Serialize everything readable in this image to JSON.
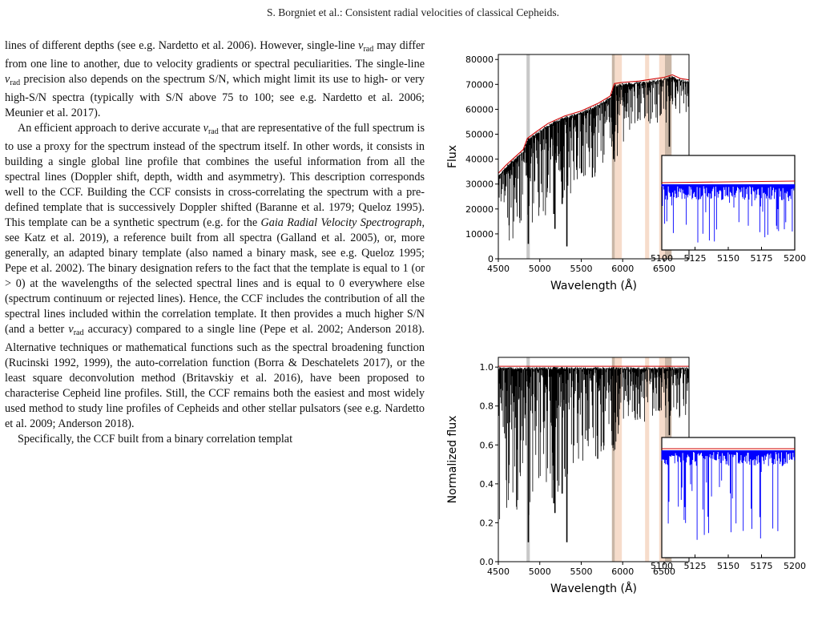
{
  "header": "S. Borgniet et al.: Consistent radial velocities of classical Cepheids.",
  "paragraphs": [
    [
      {
        "t": "lines of different depths (see e.g. Nardetto et al. 2006). However, single-line "
      },
      {
        "v": "v",
        "s": "rad"
      },
      {
        "t": " may differ from one line to another, due to veloc­ity gradients or spectral peculiarities. The single-line "
      },
      {
        "v": "v",
        "s": "rad"
      },
      {
        "t": " preci­sion also depends on the spectrum S/N, which might limit its use to high- or very high-S/N spectra (typically with S/N above 75 to 100; see e.g. Nardetto et al. 2006; Meunier et al. 2017)."
      }
    ],
    [
      {
        "t": "An efficient approach to derive accurate "
      },
      {
        "v": "v",
        "s": "rad"
      },
      {
        "t": " that are repre­sentative of the full spectrum is to use a proxy for the spectrum instead of the spectrum itself. In other words, it consists in build­ing a single global line profile that combines the useful infor­mation from all the spectral lines (Doppler shift, depth, width and asymmetry). This description corresponds well to the CCF. Building the CCF consists in cross-correlating the spectrum with a pre-defined template that is successively Doppler shifted (Baranne et al. 1979; Queloz 1995). This template can be a syn­thetic spectrum (e.g. for the "
      },
      {
        "i": "Gaia Radial Velocity Spectrograph"
      },
      {
        "t": ", see Katz et al. 2019), a reference built from all spectra (Galland et al. 2005), or, more generally, an adapted binary template (also named a binary mask, see e.g. Queloz 1995; Pepe et al. 2002). The binary designation refers to the fact that the template is equal to 1 (or > 0) at the wavelengths of the selected spectral lines and is equal to 0 everywhere else (spectrum continuum or rejected lines). Hence, the CCF includes the contribution of all the spec­tral lines included within the correlation template. It then pro­vides a much higher S/N (and a better "
      },
      {
        "v": "v",
        "s": "rad"
      },
      {
        "t": " accuracy) compared to a single line (Pepe et al. 2002; Anderson 2018). Alternative techniques or mathematical functions such as the spectral broad­ening function (Rucinski 1992, 1999), the auto-correlation func­tion (Borra & Deschatelets 2017), or the least square deconvo­lution method (Britavskiy et al. 2016), have been proposed to characterise Cepheid line profiles. Still, the CCF remains both the easiest and most widely used method to study line profiles of Cepheids and other stellar pulsators (see e.g. Nardetto et al. 2009; Anderson 2018)."
      }
    ],
    [
      {
        "t": "Specifically, the CCF built from a binary correlation templat"
      }
    ]
  ],
  "chart_data": [
    {
      "type": "line",
      "title": "",
      "xlabel": "Wavelength (Å)",
      "ylabel": "Flux",
      "xlim": [
        4500,
        6800
      ],
      "ylim": [
        0,
        82000
      ],
      "xticks": [
        "4500",
        "5000",
        "5500",
        "6000",
        "6500"
      ],
      "yticks": [
        "0",
        "10000",
        "20000",
        "30000",
        "40000",
        "50000",
        "60000",
        "70000",
        "80000"
      ],
      "xtick_values": [
        4500,
        5000,
        5500,
        6000,
        6500
      ],
      "ytick_values": [
        0,
        10000,
        20000,
        30000,
        40000,
        50000,
        60000,
        70000,
        80000
      ],
      "series": [
        {
          "color": "#000000",
          "continuum": [
            [
              4500,
              34000
            ],
            [
              4600,
              37500
            ],
            [
              4700,
              40500
            ],
            [
              4800,
              43500
            ],
            [
              4850,
              48000
            ],
            [
              4950,
              50500
            ],
            [
              5100,
              54000
            ],
            [
              5300,
              57000
            ],
            [
              5500,
              59000
            ],
            [
              5700,
              62000
            ],
            [
              5850,
              65000
            ],
            [
              5900,
              70000
            ],
            [
              6000,
              70500
            ],
            [
              6200,
              71000
            ],
            [
              6400,
              72000
            ],
            [
              6500,
              72500
            ],
            [
              6600,
              73500
            ],
            [
              6700,
              72000
            ],
            [
              6800,
              71500
            ]
          ],
          "floor": [
            [
              4500,
              8000
            ],
            [
              4700,
              7000
            ],
            [
              4900,
              13000
            ],
            [
              5100,
              16000
            ],
            [
              5300,
              21000
            ],
            [
              5500,
              31000
            ],
            [
              5700,
              33000
            ],
            [
              5900,
              37000
            ],
            [
              6100,
              49000
            ],
            [
              6300,
              53000
            ],
            [
              6500,
              53000
            ],
            [
              6800,
              57000
            ]
          ]
        },
        {
          "color": "#d00000",
          "continuum_fit": true
        }
      ],
      "deep_lines": [
        [
          4862,
          6000
        ],
        [
          5170,
          18000
        ],
        [
          5183,
          12000
        ],
        [
          5270,
          22000
        ],
        [
          5327,
          5000
        ],
        [
          5890,
          40000
        ],
        [
          6563,
          45000
        ]
      ],
      "bands": [
        {
          "x": [
            4840,
            4880
          ],
          "color": "#c8c8c8"
        },
        {
          "x": [
            5870,
            5905
          ],
          "color": "#c9b6a6"
        },
        {
          "x": [
            5905,
            5990
          ],
          "color": "#f6dccb"
        },
        {
          "x": [
            6270,
            6320
          ],
          "color": "#f6dccb"
        },
        {
          "x": [
            6440,
            6510
          ],
          "color": "#f6dccb"
        },
        {
          "x": [
            6510,
            6590
          ],
          "color": "#c9b6a6"
        }
      ],
      "inset": {
        "xlim": [
          5100,
          5200
        ],
        "xticks": [
          "5100",
          "5125",
          "5150",
          "5175",
          "5200"
        ],
        "xtick_values": [
          5100,
          5125,
          5150,
          5175,
          5200
        ],
        "line_color": "#0000ff",
        "fit_color": "#d00000"
      }
    },
    {
      "type": "line",
      "title": "",
      "xlabel": "Wavelength (Å)",
      "ylabel": "Normalized flux",
      "xlim": [
        4500,
        6800
      ],
      "ylim": [
        0,
        1.05
      ],
      "xticks": [
        "4500",
        "5000",
        "5500",
        "6000",
        "6500"
      ],
      "yticks": [
        "0.0",
        "0.2",
        "0.4",
        "0.6",
        "0.8",
        "1.0"
      ],
      "xtick_values": [
        4500,
        5000,
        5500,
        6000,
        6500
      ],
      "ytick_values": [
        0,
        0.2,
        0.4,
        0.6,
        0.8,
        1.0
      ],
      "series": [
        {
          "color": "#000000",
          "continuum": [
            [
              4500,
              1.0
            ],
            [
              6800,
              1.0
            ]
          ],
          "floor": [
            [
              4500,
              0.2
            ],
            [
              4700,
              0.14
            ],
            [
              4900,
              0.25
            ],
            [
              5100,
              0.3
            ],
            [
              5300,
              0.38
            ],
            [
              5500,
              0.5
            ],
            [
              5700,
              0.52
            ],
            [
              5900,
              0.55
            ],
            [
              6100,
              0.68
            ],
            [
              6300,
              0.72
            ],
            [
              6500,
              0.72
            ],
            [
              6800,
              0.75
            ]
          ]
        },
        {
          "color": "#d00000",
          "continuum_fit": true
        }
      ],
      "deep_lines": [
        [
          4862,
          0.1
        ],
        [
          5170,
          0.3
        ],
        [
          5183,
          0.25
        ],
        [
          5270,
          0.35
        ],
        [
          5327,
          0.1
        ],
        [
          5890,
          0.6
        ],
        [
          6563,
          0.65
        ]
      ],
      "bands": [
        {
          "x": [
            4840,
            4880
          ],
          "color": "#c8c8c8"
        },
        {
          "x": [
            5870,
            5905
          ],
          "color": "#c9b6a6"
        },
        {
          "x": [
            5905,
            5990
          ],
          "color": "#f6dccb"
        },
        {
          "x": [
            6270,
            6320
          ],
          "color": "#f6dccb"
        },
        {
          "x": [
            6440,
            6510
          ],
          "color": "#f6dccb"
        },
        {
          "x": [
            6510,
            6590
          ],
          "color": "#c9b6a6"
        }
      ],
      "inset": {
        "xlim": [
          5100,
          5200
        ],
        "xticks": [
          "5100",
          "5125",
          "5150",
          "5175",
          "5200"
        ],
        "xtick_values": [
          5100,
          5125,
          5150,
          5175,
          5200
        ],
        "line_color": "#0000ff",
        "fit_color": "#d00000"
      }
    }
  ]
}
